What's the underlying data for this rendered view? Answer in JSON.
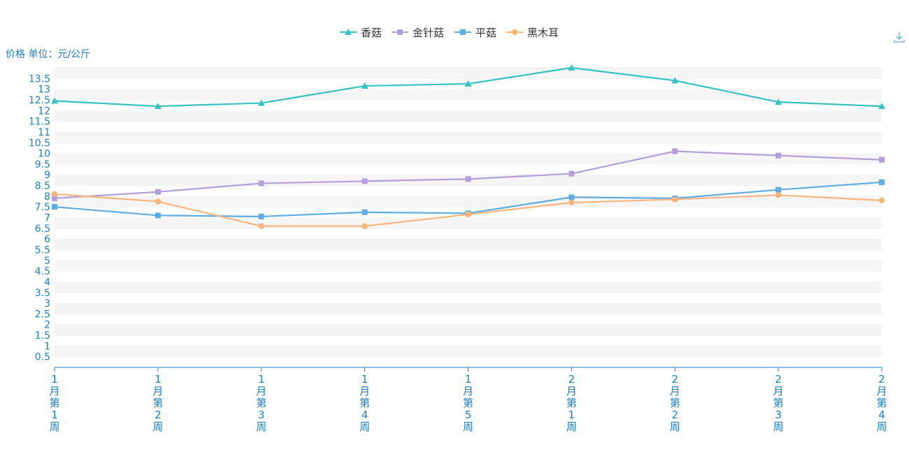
{
  "chart_data": {
    "type": "line",
    "ylabel": "价格 单位：元/公斤",
    "categories": [
      "1月第1周",
      "1月第2周",
      "1月第3周",
      "1月第4周",
      "1月第5周",
      "2月第1周",
      "2月第2周",
      "2月第3周",
      "2月第4周"
    ],
    "ylim": [
      0,
      14
    ],
    "yticks": [
      0.5,
      1,
      1.5,
      2,
      2.5,
      3,
      3.5,
      4,
      4.5,
      5,
      5.5,
      6,
      6.5,
      7,
      7.5,
      8,
      8.5,
      9,
      9.5,
      10,
      10.5,
      11,
      11.5,
      12,
      12.5,
      13,
      13.5
    ],
    "legend_position": "top-center",
    "grid": true,
    "series": [
      {
        "name": "香菇",
        "color": "#36c2c2",
        "marker": "triangle",
        "values": [
          12.45,
          12.2,
          12.35,
          13.15,
          13.25,
          14.0,
          13.4,
          12.4,
          12.2
        ]
      },
      {
        "name": "金针菇",
        "color": "#b39ddb",
        "marker": "square",
        "values": [
          7.9,
          8.2,
          8.6,
          8.7,
          8.8,
          9.05,
          10.1,
          9.9,
          9.7
        ]
      },
      {
        "name": "平菇",
        "color": "#5dade2",
        "marker": "square",
        "values": [
          7.5,
          7.1,
          7.05,
          7.25,
          7.2,
          7.95,
          7.9,
          8.3,
          8.65
        ]
      },
      {
        "name": "黑木耳",
        "color": "#f8b57d",
        "marker": "circle",
        "values": [
          8.1,
          7.75,
          6.6,
          6.6,
          7.15,
          7.7,
          7.85,
          8.05,
          7.8
        ]
      }
    ]
  },
  "toolbar": {
    "download_icon": "download-icon"
  }
}
